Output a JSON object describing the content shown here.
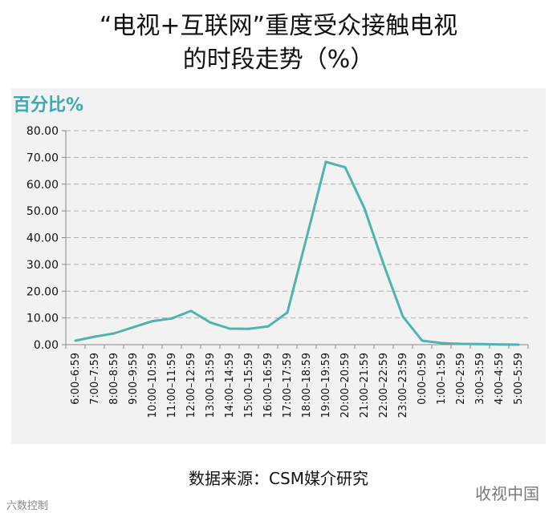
{
  "title_line1": "“电视+互联网”重度受众接触电视",
  "title_line2": "的时段走势（%）",
  "source": "数据来源：CSM媒介研究",
  "watermark_right": "收视中国",
  "watermark_left": "六数控制",
  "chart_data": {
    "type": "line",
    "title": "“电视+互联网”重度受众接触电视的时段走势（%）",
    "ylabel": "百分比%",
    "xlabel": "",
    "ylim": [
      0,
      80
    ],
    "yticks": [
      "0.00",
      "10.00",
      "20.00",
      "30.00",
      "40.00",
      "50.00",
      "60.00",
      "70.00",
      "80.00"
    ],
    "grid": true,
    "legend": "none",
    "color": "#4fb3b3",
    "categories": [
      "6:00–6:59",
      "7:00–7:59",
      "8:00–8:59",
      "9:00–9:59",
      "10:00–10:59",
      "11:00–11:59",
      "12:00–12:59",
      "13:00–13:59",
      "14:00–14:59",
      "15:00–15:59",
      "16:00–16:59",
      "17:00–17:59",
      "18:00–18:59",
      "19:00–19:59",
      "20:00–20:59",
      "21:00–21:59",
      "22:00–22:59",
      "23:00–23:59",
      "0:00–0:59",
      "1:00–1:59",
      "2:00–2:59",
      "3:00–3:59",
      "4:00–4:59",
      "5:00–5:59"
    ],
    "values": [
      1.5,
      3.0,
      4.2,
      6.5,
      8.8,
      9.8,
      12.6,
      8.3,
      6.0,
      5.9,
      6.8,
      12.0,
      40.0,
      68.3,
      66.3,
      51.0,
      30.0,
      10.5,
      1.5,
      0.6,
      0.3,
      0.2,
      0.1,
      0.0
    ]
  }
}
